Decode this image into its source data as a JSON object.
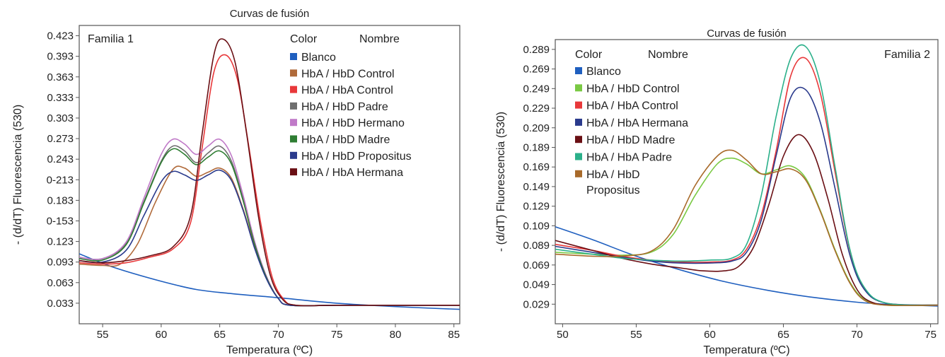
{
  "chart_data": [
    {
      "type": "line",
      "title": "Curvas de fusión",
      "family_label": "Familia 1",
      "xlabel": "Temperatura (ºC)",
      "ylabel": "- (d/dT) Fluorescencia (530)",
      "xlim": [
        53,
        85.5
      ],
      "ylim": [
        0.003,
        0.438
      ],
      "x_ticks": [
        55,
        60,
        65,
        70,
        75,
        80,
        85
      ],
      "x_tick_labels": [
        "55",
        "60",
        "65",
        "70",
        "75",
        "80",
        "85"
      ],
      "y_ticks": [
        0.423,
        0.393,
        0.363,
        0.333,
        0.303,
        0.273,
        0.243,
        0.213,
        0.183,
        0.153,
        0.123,
        0.093,
        0.063,
        0.033
      ],
      "y_tick_labels": [
        "0.423",
        "0.393",
        "0.363",
        "0.333",
        "0.303",
        "0.273",
        "0.243",
        "0-213",
        "0.183",
        "0-153",
        "0.123",
        "0.093",
        "0.063",
        "0.033"
      ],
      "grid": false,
      "legend": {
        "header_color": "Color",
        "header_name": "Nombre",
        "position": "top-right"
      },
      "series": [
        {
          "name": "Blanco",
          "color": "#1f5fbf",
          "x": [
            53,
            56,
            60,
            63,
            66,
            70,
            75,
            80,
            85.5
          ],
          "y": [
            0.105,
            0.085,
            0.065,
            0.053,
            0.047,
            0.041,
            0.033,
            0.028,
            0.024
          ]
        },
        {
          "name": "HbA / HbD Control",
          "color": "#b06a3a",
          "x": [
            53,
            55,
            56.5,
            58,
            59.5,
            61,
            62,
            63,
            64,
            65,
            66,
            67,
            68,
            69,
            70,
            71,
            75,
            80,
            85.5
          ],
          "y": [
            0.09,
            0.088,
            0.09,
            0.12,
            0.18,
            0.228,
            0.23,
            0.218,
            0.224,
            0.23,
            0.215,
            0.17,
            0.115,
            0.07,
            0.04,
            0.03,
            0.03,
            0.03,
            0.03
          ]
        },
        {
          "name": "HbA / HbA Control",
          "color": "#e8383a",
          "x": [
            53,
            55,
            57,
            59,
            61,
            62.5,
            63.5,
            64.5,
            65.5,
            66.5,
            67.5,
            68.5,
            69.5,
            70.5,
            71.5,
            75,
            80,
            85.5
          ],
          "y": [
            0.092,
            0.09,
            0.092,
            0.1,
            0.112,
            0.15,
            0.26,
            0.37,
            0.395,
            0.36,
            0.26,
            0.15,
            0.07,
            0.038,
            0.03,
            0.03,
            0.03,
            0.03
          ]
        },
        {
          "name": "HbA / HbD Padre",
          "color": "#6e6e6e",
          "x": [
            53,
            55,
            57,
            58.5,
            60,
            61,
            62,
            63,
            64,
            65,
            66,
            67,
            68,
            69,
            70,
            71,
            75,
            80,
            85.5
          ],
          "y": [
            0.1,
            0.098,
            0.12,
            0.18,
            0.24,
            0.262,
            0.255,
            0.238,
            0.252,
            0.262,
            0.24,
            0.185,
            0.12,
            0.07,
            0.04,
            0.03,
            0.03,
            0.03,
            0.03
          ]
        },
        {
          "name": "HbA / HbD Hermano",
          "color": "#c07ac8",
          "x": [
            53,
            55,
            57,
            58.5,
            60,
            61,
            62,
            63,
            64,
            65,
            66,
            67,
            68,
            69,
            70,
            71,
            75,
            80,
            85.5
          ],
          "y": [
            0.1,
            0.098,
            0.122,
            0.185,
            0.25,
            0.272,
            0.265,
            0.25,
            0.262,
            0.272,
            0.248,
            0.19,
            0.122,
            0.072,
            0.04,
            0.03,
            0.03,
            0.03,
            0.03
          ]
        },
        {
          "name": "HbA / HbD Madre",
          "color": "#2e7d32",
          "x": [
            53,
            55,
            57,
            58.5,
            60,
            61,
            62,
            63,
            64,
            65,
            66,
            67,
            68,
            69,
            70,
            71,
            75,
            80,
            85.5
          ],
          "y": [
            0.098,
            0.096,
            0.118,
            0.178,
            0.238,
            0.258,
            0.25,
            0.235,
            0.246,
            0.255,
            0.236,
            0.182,
            0.118,
            0.07,
            0.04,
            0.03,
            0.03,
            0.03,
            0.03
          ]
        },
        {
          "name": "HbA / HbD Propositus",
          "color": "#2a3a8c",
          "x": [
            53,
            55,
            57,
            58.5,
            60,
            61,
            62,
            63,
            64,
            65,
            66,
            67,
            68,
            69,
            70,
            71,
            75,
            80,
            85.5
          ],
          "y": [
            0.095,
            0.093,
            0.11,
            0.16,
            0.21,
            0.225,
            0.22,
            0.212,
            0.22,
            0.227,
            0.212,
            0.168,
            0.112,
            0.068,
            0.04,
            0.03,
            0.03,
            0.03,
            0.03
          ]
        },
        {
          "name": "HbA / HbA Hermana",
          "color": "#6a0f14",
          "x": [
            53,
            55,
            57,
            59,
            61,
            62.5,
            63.5,
            64.5,
            65.3,
            66.3,
            67.3,
            68.3,
            69.3,
            70.3,
            71.5,
            75,
            80,
            85.5
          ],
          "y": [
            0.095,
            0.092,
            0.095,
            0.102,
            0.115,
            0.16,
            0.28,
            0.395,
            0.418,
            0.385,
            0.28,
            0.16,
            0.075,
            0.04,
            0.03,
            0.03,
            0.03,
            0.03
          ]
        }
      ]
    },
    {
      "type": "line",
      "title": "Curvas de fusión",
      "family_label": "Familia 2",
      "xlabel": "Temperatura (ºC)",
      "ylabel": "- (d/dT) Fluorescencia (530)",
      "xlim": [
        49.5,
        75.5
      ],
      "ylim": [
        0.009,
        0.299
      ],
      "x_ticks": [
        50,
        55,
        60,
        65,
        70,
        75
      ],
      "x_tick_labels": [
        "50",
        "55",
        "60",
        "65",
        "70",
        "75"
      ],
      "y_ticks": [
        0.289,
        0.269,
        0.249,
        0.229,
        0.209,
        0.189,
        0.169,
        0.149,
        0.129,
        0.109,
        0.089,
        0.069,
        0.049,
        0.029
      ],
      "y_tick_labels": [
        "0.289",
        "0.269",
        "0.249",
        "0.229",
        "0.209",
        "0.189",
        "0.169",
        "0.149",
        "0.129",
        "0.109",
        "0.089",
        "0.069",
        "0.049",
        "0.029"
      ],
      "grid": false,
      "legend": {
        "header_color": "Color",
        "header_name": "Nombre",
        "position": "top-left"
      },
      "series": [
        {
          "name": "Blanco",
          "color": "#1f5fbf",
          "x": [
            49.5,
            52,
            55,
            58,
            61,
            64,
            67,
            70,
            72,
            75.5
          ],
          "y": [
            0.108,
            0.095,
            0.078,
            0.064,
            0.052,
            0.043,
            0.036,
            0.031,
            0.029,
            0.027
          ]
        },
        {
          "name": "HbA / HbD Control",
          "color": "#7ac943",
          "x": [
            49.5,
            52,
            54,
            56,
            57.5,
            59,
            60.5,
            61.5,
            62.5,
            63.5,
            64.5,
            65.5,
            66.5,
            67.5,
            68.5,
            69.5,
            70.5,
            72,
            75.5
          ],
          "y": [
            0.082,
            0.08,
            0.079,
            0.082,
            0.1,
            0.14,
            0.172,
            0.178,
            0.172,
            0.162,
            0.166,
            0.17,
            0.158,
            0.125,
            0.085,
            0.052,
            0.034,
            0.028,
            0.028
          ]
        },
        {
          "name": "HbA / HbA Control",
          "color": "#e8383a",
          "x": [
            49.5,
            52,
            54,
            56,
            58,
            60,
            61.5,
            62.5,
            63.5,
            64.5,
            65.5,
            66.5,
            67.5,
            68.5,
            69.5,
            70.5,
            72,
            75.5
          ],
          "y": [
            0.09,
            0.084,
            0.078,
            0.074,
            0.072,
            0.072,
            0.074,
            0.085,
            0.12,
            0.185,
            0.262,
            0.28,
            0.245,
            0.165,
            0.085,
            0.045,
            0.03,
            0.028
          ]
        },
        {
          "name": "HbA / HbA Hermana",
          "color": "#2a3a8c",
          "x": [
            49.5,
            52,
            54,
            56,
            58,
            60,
            61.5,
            62.5,
            63.5,
            64.5,
            65.5,
            66.5,
            67.5,
            68.5,
            69.5,
            70.5,
            72,
            75.5
          ],
          "y": [
            0.088,
            0.082,
            0.077,
            0.073,
            0.071,
            0.071,
            0.073,
            0.082,
            0.115,
            0.18,
            0.24,
            0.248,
            0.215,
            0.148,
            0.08,
            0.044,
            0.03,
            0.028
          ]
        },
        {
          "name": "HbA / HbD Madre",
          "color": "#6a0f14",
          "x": [
            49.5,
            52,
            54,
            56,
            58,
            59.5,
            61,
            62,
            63,
            64,
            65,
            66,
            67,
            68,
            69,
            70,
            71,
            72.5,
            75.5
          ],
          "y": [
            0.094,
            0.084,
            0.076,
            0.07,
            0.066,
            0.063,
            0.063,
            0.068,
            0.088,
            0.13,
            0.18,
            0.202,
            0.185,
            0.138,
            0.08,
            0.044,
            0.031,
            0.028,
            0.028
          ]
        },
        {
          "name": "HbA / HbA Padre",
          "color": "#2bb08a",
          "x": [
            49.5,
            52,
            54,
            56,
            58,
            60,
            61.5,
            62.5,
            63.5,
            64.5,
            65.5,
            66.5,
            67.5,
            68.5,
            69.5,
            70.5,
            72,
            75.5
          ],
          "y": [
            0.085,
            0.08,
            0.076,
            0.074,
            0.073,
            0.074,
            0.076,
            0.09,
            0.14,
            0.22,
            0.28,
            0.292,
            0.255,
            0.17,
            0.086,
            0.046,
            0.03,
            0.028
          ]
        },
        {
          "name": "HbA / HbD Propositus",
          "color": "#a86a2a",
          "x": [
            49.5,
            52,
            54,
            56,
            57.5,
            59,
            60.5,
            61.5,
            62.5,
            63.5,
            64.5,
            65.5,
            66.5,
            67.5,
            68.5,
            69.5,
            70.5,
            72,
            75.5
          ],
          "y": [
            0.08,
            0.078,
            0.078,
            0.083,
            0.105,
            0.15,
            0.18,
            0.186,
            0.176,
            0.162,
            0.164,
            0.167,
            0.156,
            0.124,
            0.084,
            0.051,
            0.033,
            0.028,
            0.028
          ]
        }
      ]
    }
  ]
}
